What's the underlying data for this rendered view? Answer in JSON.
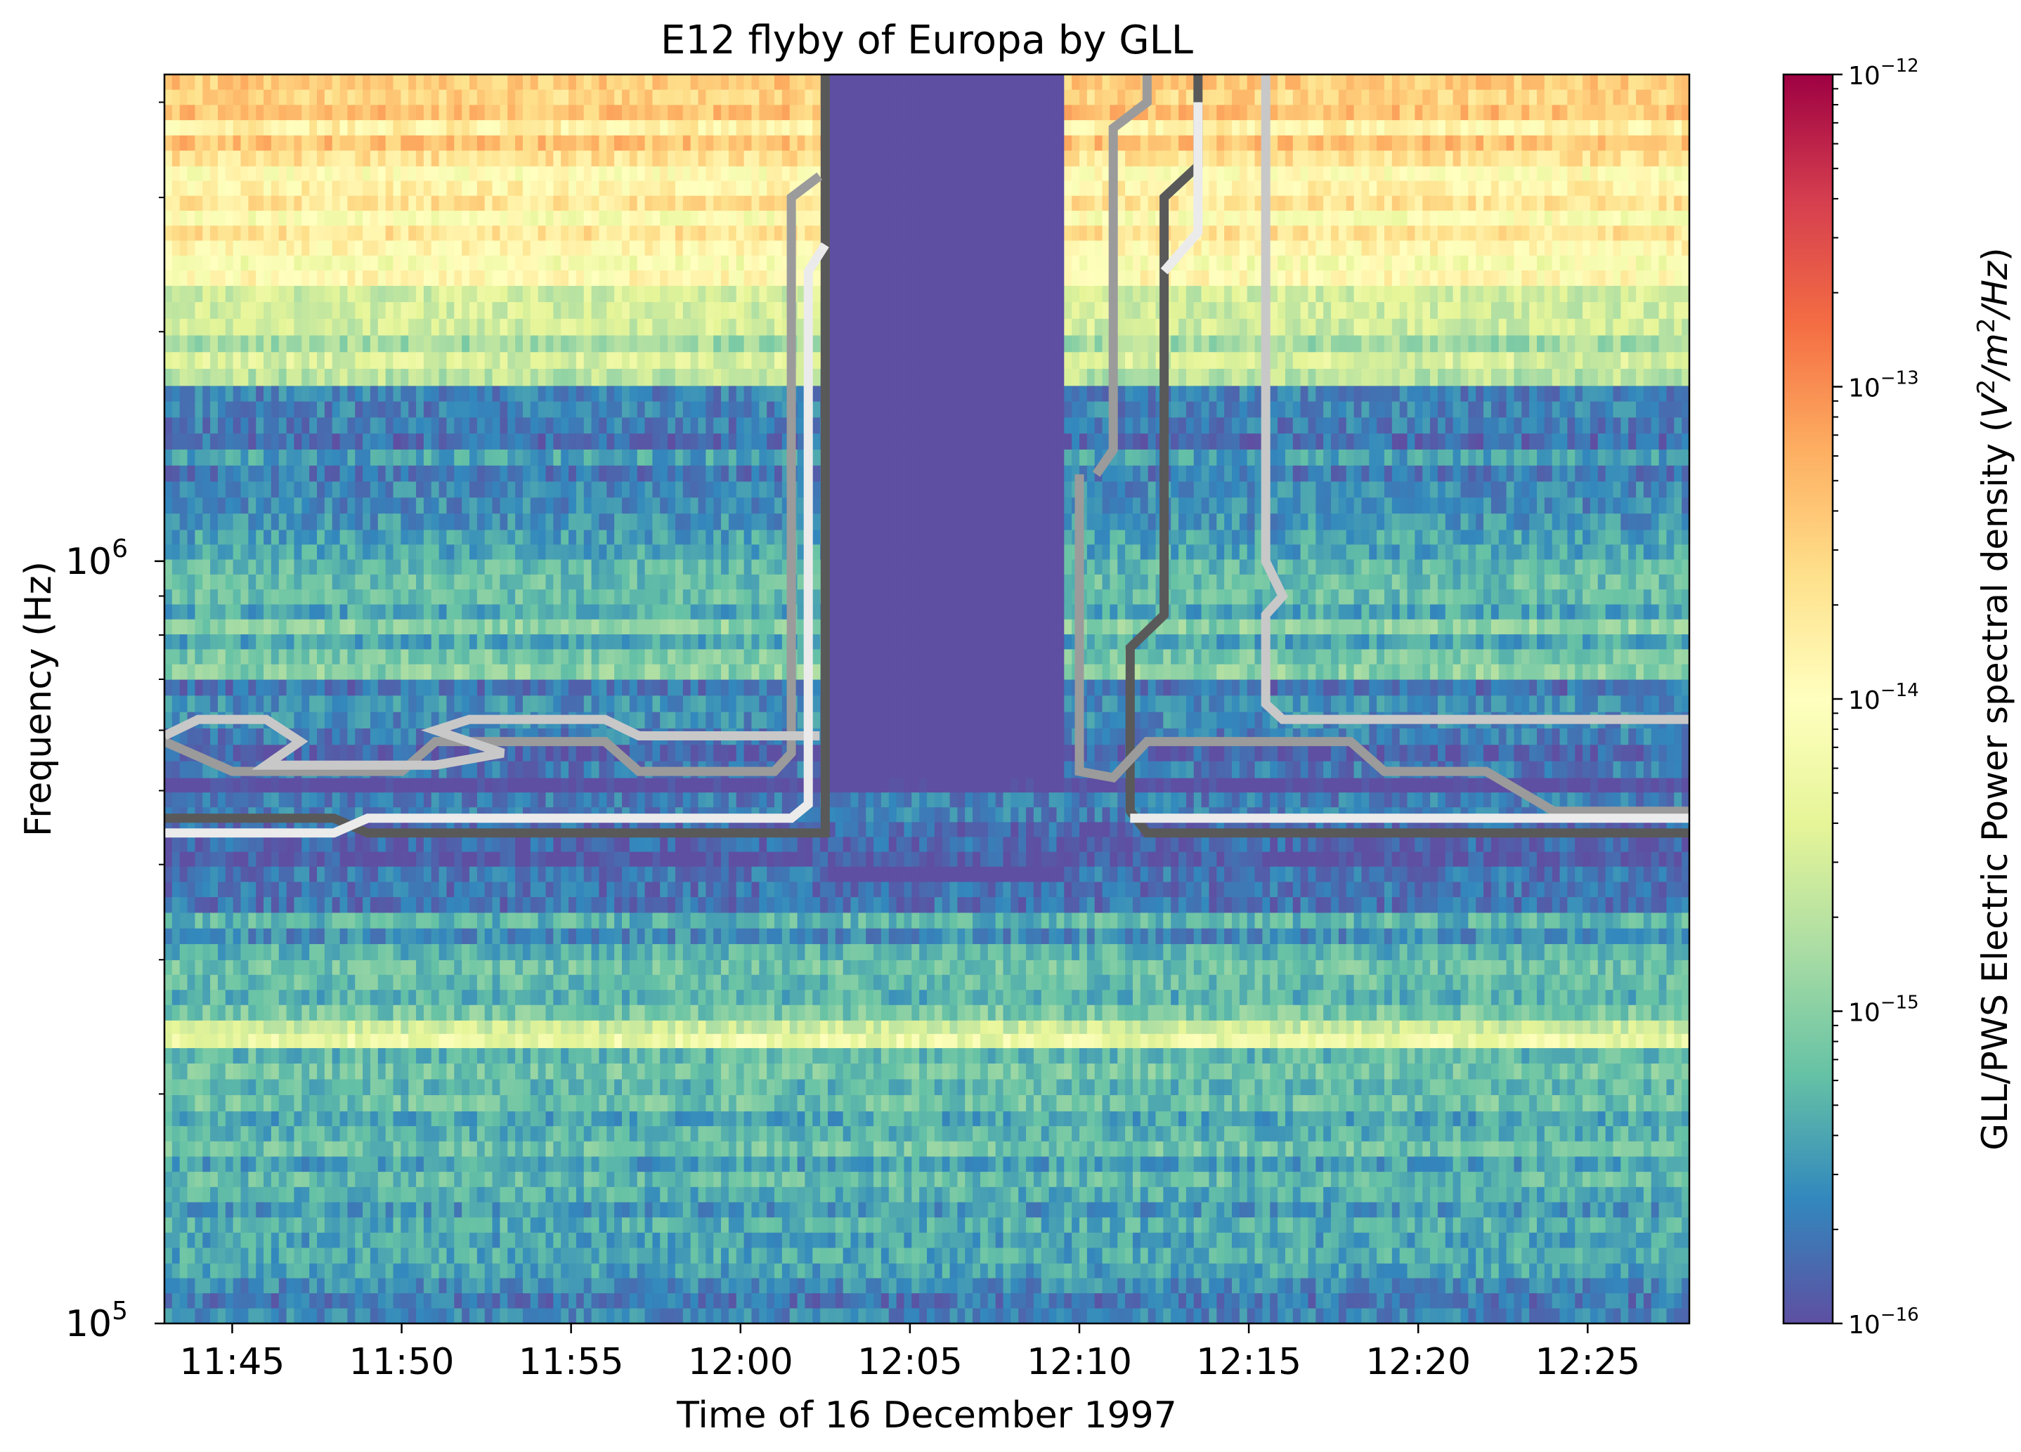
{
  "chart_data": {
    "type": "heatmap",
    "title": "E12 flyby of Europa by GLL",
    "xlabel": "Time of 16 December 1997",
    "ylabel": "Frequency (Hz)",
    "colorbar_label": "GLL/PWS Electric Power spectral density (V²/m²/Hz)",
    "x_range": [
      "11:43",
      "12:28"
    ],
    "y_range_hz": [
      100000,
      4350000
    ],
    "y_scale": "log",
    "x_ticks": [
      "11:45",
      "11:50",
      "11:55",
      "12:00",
      "12:05",
      "12:10",
      "12:15",
      "12:20",
      "12:25"
    ],
    "y_ticks": [
      {
        "value": 100000,
        "base": "10",
        "exp": "5"
      },
      {
        "value": 1000000,
        "base": "10",
        "exp": "6"
      }
    ],
    "colorbar_ticks": [
      {
        "value": 1e-12,
        "base": "10",
        "exp": "−12"
      },
      {
        "value": 1e-13,
        "base": "10",
        "exp": "−13"
      },
      {
        "value": 1e-14,
        "base": "10",
        "exp": "−14"
      },
      {
        "value": 1e-15,
        "base": "10",
        "exp": "−15"
      },
      {
        "value": 1e-16,
        "base": "10",
        "exp": "−16"
      }
    ],
    "colorbar_range": [
      1e-16,
      1e-12
    ],
    "colormap": "Spectral_r",
    "colormap_stops": [
      "#5e4fa2",
      "#3288bd",
      "#66c2a5",
      "#abdda4",
      "#e6f598",
      "#ffffbf",
      "#fee08b",
      "#fdae61",
      "#f46d43",
      "#d53e4f",
      "#9e0142"
    ],
    "spectrogram_bands": [
      {
        "freq_hz": [
          100000,
          120000
        ],
        "log_psd": -15.5
      },
      {
        "freq_hz": [
          120000,
          190000
        ],
        "log_psd": -15.3
      },
      {
        "freq_hz": [
          190000,
          230000
        ],
        "log_psd": -15.2
      },
      {
        "freq_hz": [
          230000,
          250000
        ],
        "log_psd": -14.5
      },
      {
        "freq_hz": [
          250000,
          300000
        ],
        "log_psd": -15.1
      },
      {
        "freq_hz": [
          300000,
          380000
        ],
        "log_psd": -15.5
      },
      {
        "freq_hz": [
          380000,
          520000
        ],
        "log_psd": -15.9
      },
      {
        "freq_hz": [
          520000,
          700000
        ],
        "log_psd": -15.8
      },
      {
        "freq_hz": [
          700000,
          1100000
        ],
        "log_psd": -15.2
      },
      {
        "freq_hz": [
          1100000,
          1700000
        ],
        "log_psd": -15.6
      },
      {
        "freq_hz": [
          1700000,
          2300000
        ],
        "log_psd": -14.6
      },
      {
        "freq_hz": [
          2300000,
          3300000
        ],
        "log_psd": -13.9
      },
      {
        "freq_hz": [
          3300000,
          4350000
        ],
        "log_psd": -13.6
      }
    ],
    "quiet_gap": {
      "time": [
        "12:02:30",
        "12:09:30"
      ],
      "freq_hz": [
        500000,
        4350000
      ],
      "log_psd": -16.0
    },
    "contours": [
      {
        "color": "#595959",
        "points": [
          [
            "11:43",
            "460000"
          ],
          [
            "11:48",
            "460000"
          ],
          [
            "11:49",
            "440000"
          ],
          [
            "12:02:30",
            "440000"
          ],
          [
            "12:02:30",
            "4350000"
          ]
        ]
      },
      {
        "color": "#595959",
        "points": [
          [
            "12:28",
            "440000"
          ],
          [
            "12:12",
            "440000"
          ],
          [
            "12:11:30",
            "470000"
          ],
          [
            "12:11:30",
            "770000"
          ],
          [
            "12:12:30",
            "850000"
          ],
          [
            "12:12:30",
            "3000000"
          ],
          [
            "12:13:30",
            "3300000"
          ],
          [
            "12:13:30",
            "4350000"
          ]
        ]
      },
      {
        "color": "#9b9b9b",
        "points": [
          [
            "11:43",
            "580000"
          ],
          [
            "11:45",
            "530000"
          ],
          [
            "11:50",
            "530000"
          ],
          [
            "11:51",
            "580000"
          ],
          [
            "11:56",
            "580000"
          ],
          [
            "11:57",
            "530000"
          ],
          [
            "12:01",
            "530000"
          ],
          [
            "12:01:30",
            "560000"
          ],
          [
            "12:01:30",
            "3000000"
          ],
          [
            "12:02:20",
            "3200000"
          ]
        ]
      },
      {
        "color": "#9b9b9b",
        "points": [
          [
            "12:10:30",
            "1300000"
          ],
          [
            "12:11",
            "1400000"
          ],
          [
            "12:11",
            "3700000"
          ],
          [
            "12:12",
            "4000000"
          ],
          [
            "12:12",
            "4350000"
          ]
        ]
      },
      {
        "color": "#9b9b9b",
        "points": [
          [
            "12:10",
            "1300000"
          ],
          [
            "12:10",
            "530000"
          ],
          [
            "12:11",
            "520000"
          ],
          [
            "12:12",
            "580000"
          ],
          [
            "12:18",
            "580000"
          ],
          [
            "12:19",
            "530000"
          ],
          [
            "12:22",
            "530000"
          ],
          [
            "12:24",
            "470000"
          ],
          [
            "12:28",
            "470000"
          ]
        ]
      },
      {
        "color": "#c8c8c8",
        "points": [
          [
            "11:43",
            "590000"
          ],
          [
            "11:44",
            "620000"
          ],
          [
            "11:46",
            "620000"
          ],
          [
            "11:47",
            "580000"
          ],
          [
            "11:46",
            "540000"
          ],
          [
            "11:51",
            "540000"
          ],
          [
            "11:53",
            "560000"
          ],
          [
            "11:51",
            "600000"
          ],
          [
            "11:52",
            "620000"
          ],
          [
            "11:56",
            "620000"
          ],
          [
            "11:57",
            "590000"
          ],
          [
            "12:02:20",
            "590000"
          ]
        ]
      },
      {
        "color": "#c8c8c8",
        "points": [
          [
            "12:15:30",
            "4350000"
          ],
          [
            "12:15:30",
            "1000000"
          ],
          [
            "12:16",
            "900000"
          ],
          [
            "12:15:30",
            "850000"
          ],
          [
            "12:15:30",
            "650000"
          ],
          [
            "12:16",
            "620000"
          ],
          [
            "12:28",
            "620000"
          ]
        ]
      },
      {
        "color": "#ebebeb",
        "points": [
          [
            "11:43",
            "440000"
          ],
          [
            "11:48",
            "440000"
          ],
          [
            "11:49",
            "460000"
          ],
          [
            "12:01:30",
            "460000"
          ],
          [
            "12:02",
            "480000"
          ],
          [
            "12:02",
            "2400000"
          ],
          [
            "12:02:30",
            "2600000"
          ]
        ]
      },
      {
        "color": "#ebebeb",
        "points": [
          [
            "12:11:30",
            "460000"
          ],
          [
            "12:28",
            "460000"
          ]
        ]
      },
      {
        "color": "#ebebeb",
        "points": [
          [
            "12:12:30",
            "2400000"
          ],
          [
            "12:13:30",
            "2700000"
          ],
          [
            "12:13:30",
            "4000000"
          ]
        ]
      }
    ],
    "grid": false
  }
}
